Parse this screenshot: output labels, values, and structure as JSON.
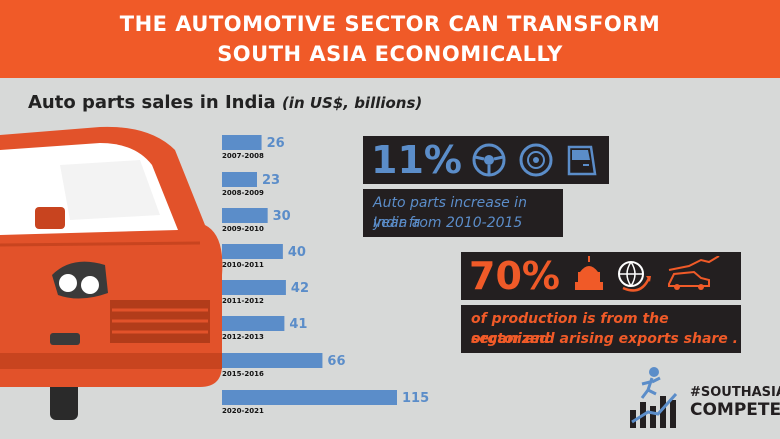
{
  "header": {
    "line1": "THE AUTOMOTIVE SECTOR CAN TRANSFORM",
    "line2": "SOUTH ASIA ECONOMICALLY"
  },
  "subtitle": {
    "main": "Auto parts sales in India",
    "unit": "(in US$, billions)"
  },
  "chart_data": {
    "type": "bar",
    "orientation": "horizontal",
    "categories": [
      "2007-2008",
      "2008-2009",
      "2009-2010",
      "2010-2011",
      "2011-2012",
      "2012-2013",
      "2015-2016",
      "2020-2021"
    ],
    "values": [
      26,
      23,
      30,
      40,
      42,
      41,
      66,
      115
    ],
    "title": "Auto parts sales in India (in US$, billions)",
    "xlabel": "",
    "ylabel": "",
    "xlim": [
      0,
      115
    ],
    "grid": false,
    "bar_color": "#5b8dc9"
  },
  "stat1": {
    "value": "11%",
    "text_line1": "Auto parts increase in India a",
    "text_line2": "year from 2010-2015",
    "icons": [
      "steering-wheel-icon",
      "wheel-rim-icon",
      "car-door-icon"
    ]
  },
  "stat2": {
    "value": "70%",
    "text_line1": "of production is from the organized",
    "text_line2": "sector and arising exports share .",
    "icons": [
      "capitol-building-icon",
      "globe-arrow-icon",
      "car-growth-icon"
    ]
  },
  "hashtag": {
    "line1": "#SOUTHASIA",
    "line2": "COMPETES"
  },
  "colors": {
    "accent": "#f05a28",
    "bar": "#5b8dc9",
    "panel": "#231f20",
    "background": "#d7d9d8"
  }
}
